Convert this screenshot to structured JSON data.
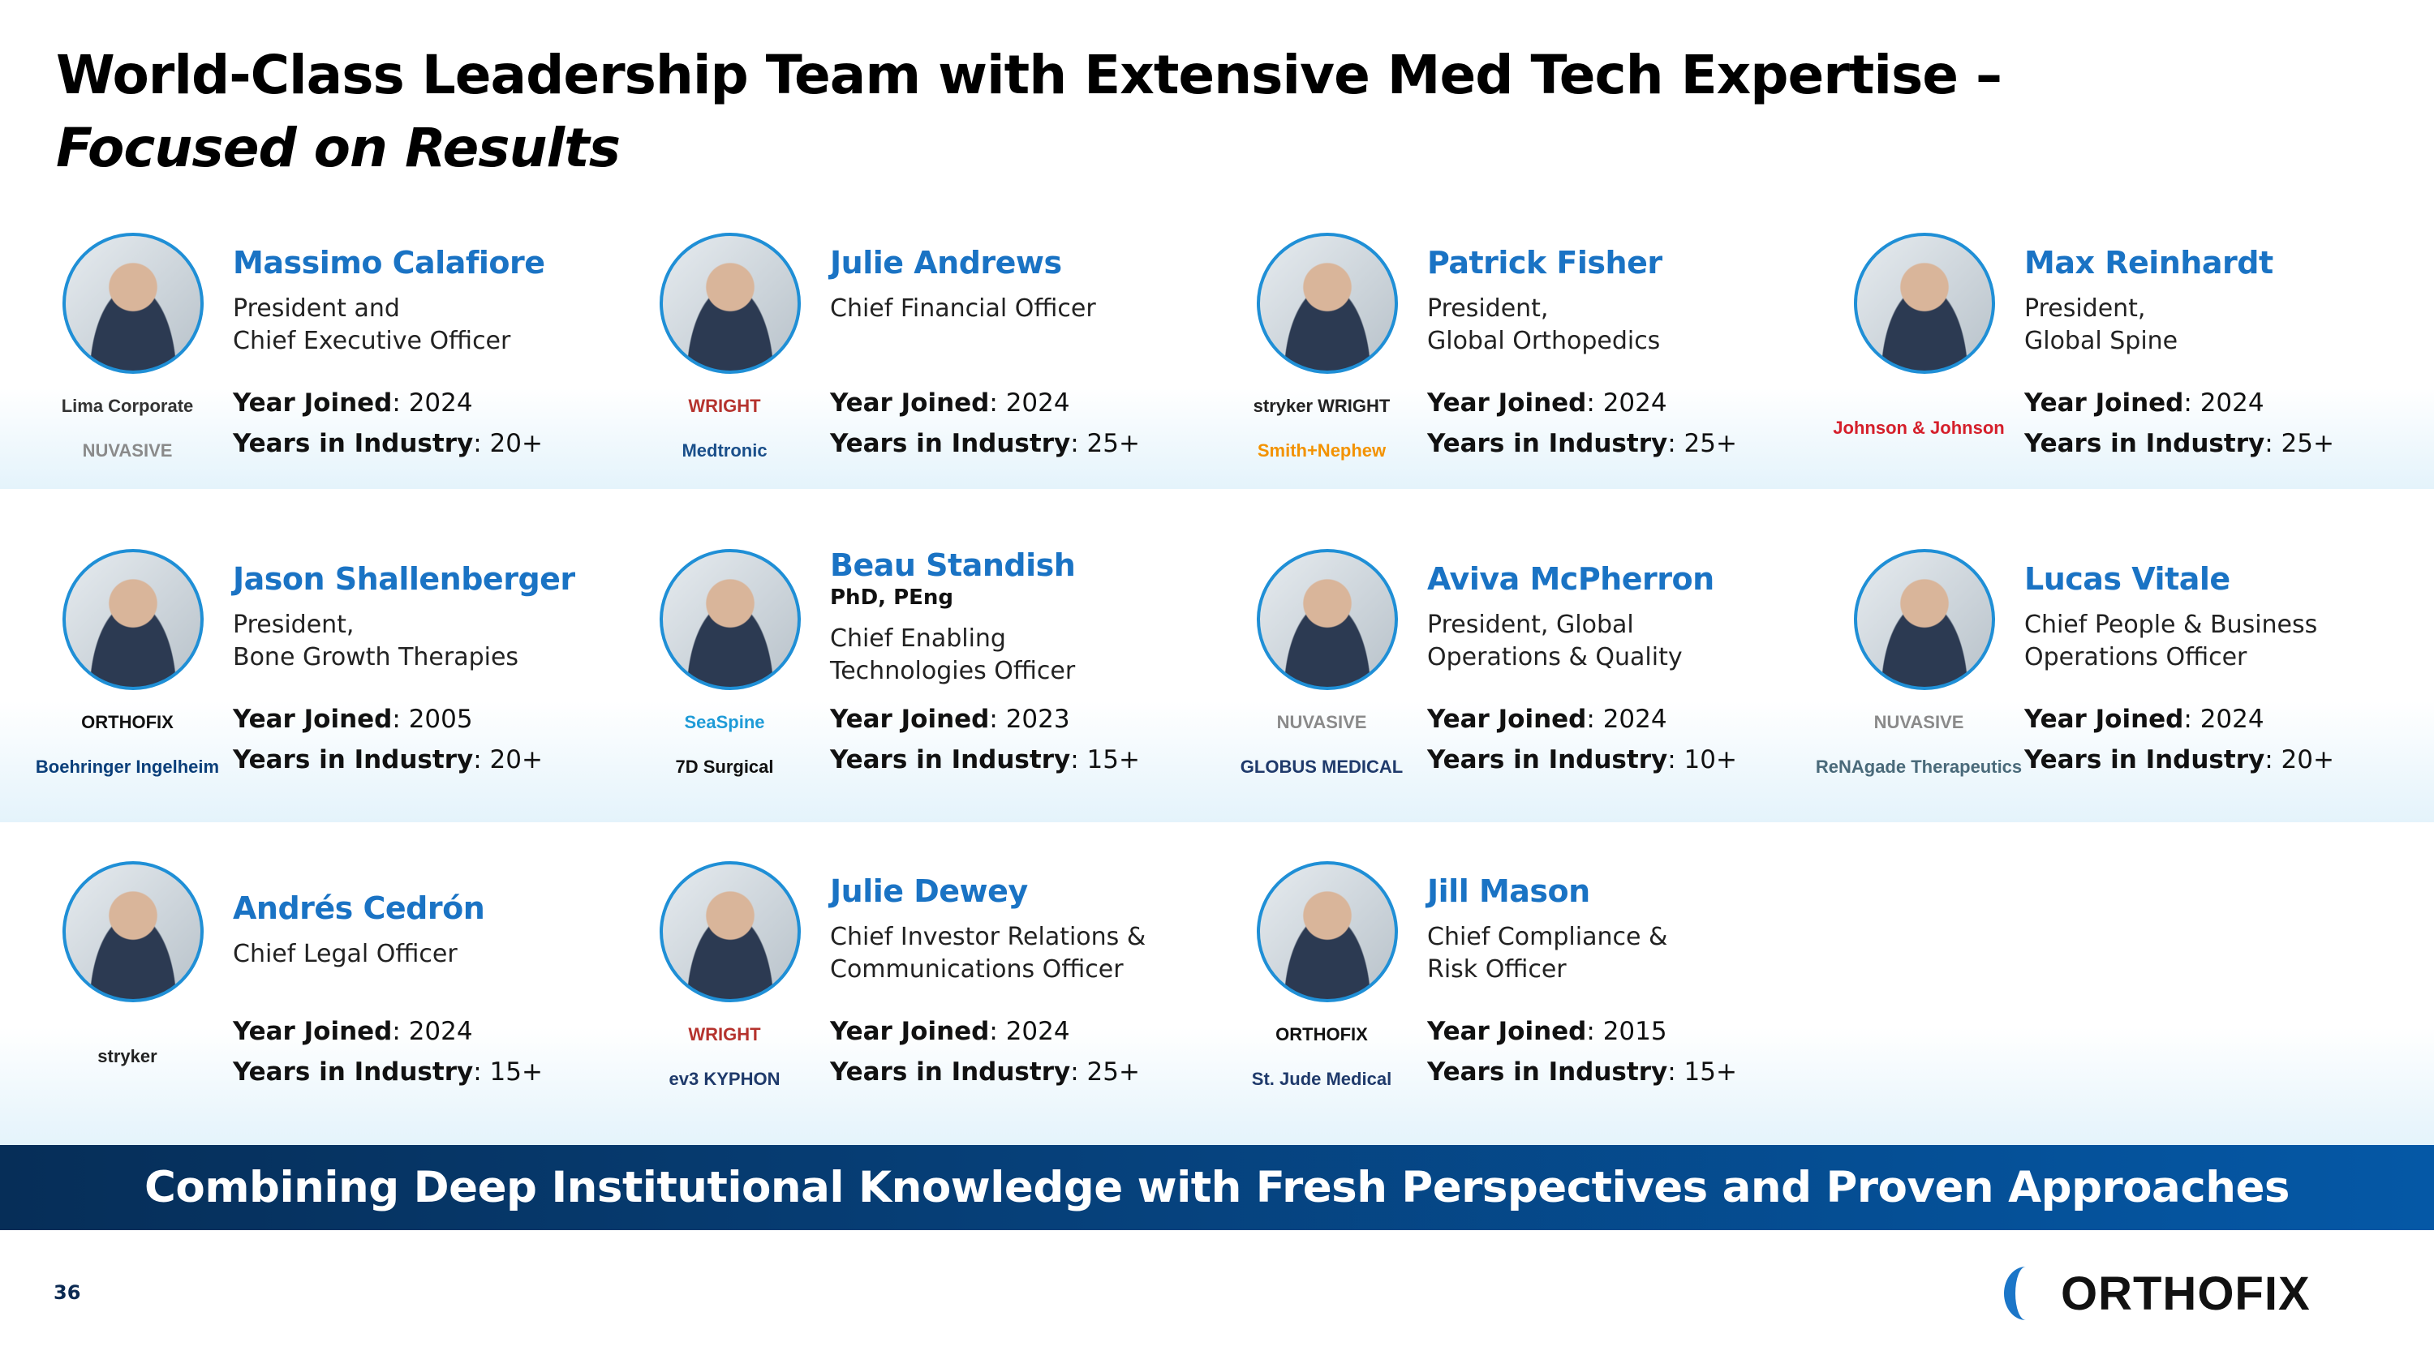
{
  "title": {
    "line1": "World-Class Leadership Team with Extensive Med Tech Expertise –",
    "line2": "Focused on Results"
  },
  "labels": {
    "year_joined": "Year Joined",
    "years_industry": "Years in Industry"
  },
  "people": [
    {
      "name": "Massimo Calafiore",
      "role": [
        "President and",
        "Chief Executive Officer"
      ],
      "year_joined": "2024",
      "years_industry": "20+",
      "logos": [
        {
          "text": "Lima Corporate",
          "color": "#333333"
        },
        {
          "text": "NUVASIVE",
          "color": "#8a8a8a"
        }
      ]
    },
    {
      "name": "Julie Andrews",
      "role": [
        "Chief Financial Officer"
      ],
      "year_joined": "2024",
      "years_industry": "25+",
      "logos": [
        {
          "text": "WRIGHT",
          "color": "#b5332e"
        },
        {
          "text": "Medtronic",
          "color": "#1a4f8a"
        }
      ]
    },
    {
      "name": "Patrick Fisher",
      "role": [
        "President,",
        "Global Orthopedics"
      ],
      "year_joined": "2024",
      "years_industry": "25+",
      "logos": [
        {
          "text": "stryker  WRIGHT",
          "color": "#222222"
        },
        {
          "text": "Smith+Nephew",
          "color": "#f39200"
        }
      ]
    },
    {
      "name": "Max Reinhardt",
      "role": [
        "President,",
        "Global Spine"
      ],
      "year_joined": "2024",
      "years_industry": "25+",
      "logos": [
        {
          "text": "Johnson & Johnson",
          "color": "#d51f2b"
        }
      ]
    },
    {
      "name": "Jason Shallenberger",
      "role": [
        "President,",
        "Bone Growth Therapies"
      ],
      "year_joined": "2005",
      "years_industry": "20+",
      "logos": [
        {
          "text": "ORTHOFIX",
          "color": "#111111"
        },
        {
          "text": "Boehringer Ingelheim",
          "color": "#0b3f7a"
        }
      ]
    },
    {
      "name": "Beau Standish",
      "credentials": "PhD, PEng",
      "role": [
        "Chief Enabling",
        "Technologies Officer"
      ],
      "year_joined": "2023",
      "years_industry": "15+",
      "logos": [
        {
          "text": "SeaSpine",
          "color": "#1e9bd7"
        },
        {
          "text": "7D Surgical",
          "color": "#111111"
        }
      ]
    },
    {
      "name": "Aviva McPherron",
      "role": [
        "President, Global",
        "Operations & Quality"
      ],
      "year_joined": "2024",
      "years_industry": "10+",
      "logos": [
        {
          "text": "NUVASIVE",
          "color": "#8a8a8a"
        },
        {
          "text": "GLOBUS MEDICAL",
          "color": "#1f3a6b"
        }
      ]
    },
    {
      "name": "Lucas Vitale",
      "role": [
        "Chief People & Business",
        "Operations Officer"
      ],
      "year_joined": "2024",
      "years_industry": "20+",
      "logos": [
        {
          "text": "NUVASIVE",
          "color": "#8a8a8a"
        },
        {
          "text": "ReNAgade Therapeutics",
          "color": "#4a6a7a"
        }
      ]
    },
    {
      "name": "Andrés Cedrón",
      "role": [
        "Chief Legal Officer"
      ],
      "year_joined": "2024",
      "years_industry": "15+",
      "logos": [
        {
          "text": "stryker",
          "color": "#222222"
        }
      ]
    },
    {
      "name": "Julie Dewey",
      "role": [
        "Chief Investor Relations &",
        "Communications Officer"
      ],
      "year_joined": "2024",
      "years_industry": "25+",
      "logos": [
        {
          "text": "WRIGHT",
          "color": "#b5332e"
        },
        {
          "text": "ev3  KYPHON",
          "color": "#1f3a6b"
        }
      ]
    },
    {
      "name": "Jill Mason",
      "role": [
        "Chief Compliance &",
        "Risk Officer"
      ],
      "year_joined": "2015",
      "years_industry": "15+",
      "logos": [
        {
          "text": "ORTHOFIX",
          "color": "#111111"
        },
        {
          "text": "St. Jude Medical",
          "color": "#1f3a6b"
        }
      ]
    }
  ],
  "banner": "Combining Deep Institutional Knowledge with Fresh Perspectives and Proven Approaches",
  "page_number": "36",
  "brand": "ORTHOFIX",
  "colors": {
    "accent": "#1a73c4",
    "banner_start": "#062e58",
    "banner_end": "#0558a6"
  }
}
